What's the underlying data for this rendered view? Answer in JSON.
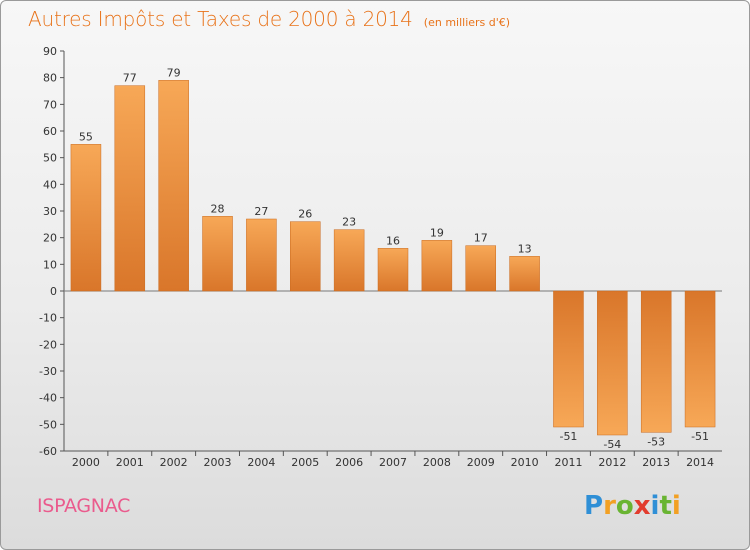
{
  "title": "Autres Impôts et Taxes de 2000 à 2014",
  "unit": "(en milliers d'€)",
  "commune": "ISPAGNAC",
  "brand": {
    "letters": [
      "P",
      "r",
      "o",
      "x",
      "i",
      "t",
      "i"
    ],
    "colors": [
      "#2f8fd6",
      "#f2a023",
      "#69b432",
      "#e23c2e",
      "#2f8fd6",
      "#69b432",
      "#f2a023"
    ]
  },
  "colors": {
    "accent": "#e8731a",
    "bar_light": "#f7a857",
    "bar_dark": "#d9762a",
    "commune": "#ea5b8d"
  },
  "chart_data": {
    "type": "bar",
    "title": "Autres Impôts et Taxes de 2000 à 2014",
    "ylabel": "",
    "xlabel": "",
    "categories": [
      "2000",
      "2001",
      "2002",
      "2003",
      "2004",
      "2005",
      "2006",
      "2007",
      "2008",
      "2009",
      "2010",
      "2011",
      "2012",
      "2013",
      "2014"
    ],
    "values": [
      55,
      77,
      79,
      28,
      27,
      26,
      23,
      16,
      19,
      17,
      13,
      -51,
      -54,
      -53,
      -51
    ],
    "ylim": [
      -60,
      90
    ],
    "yticks": [
      90,
      80,
      70,
      60,
      50,
      40,
      30,
      20,
      10,
      0,
      -10,
      -20,
      -30,
      -40,
      -50,
      -60
    ],
    "grid": false,
    "legend": "none"
  }
}
